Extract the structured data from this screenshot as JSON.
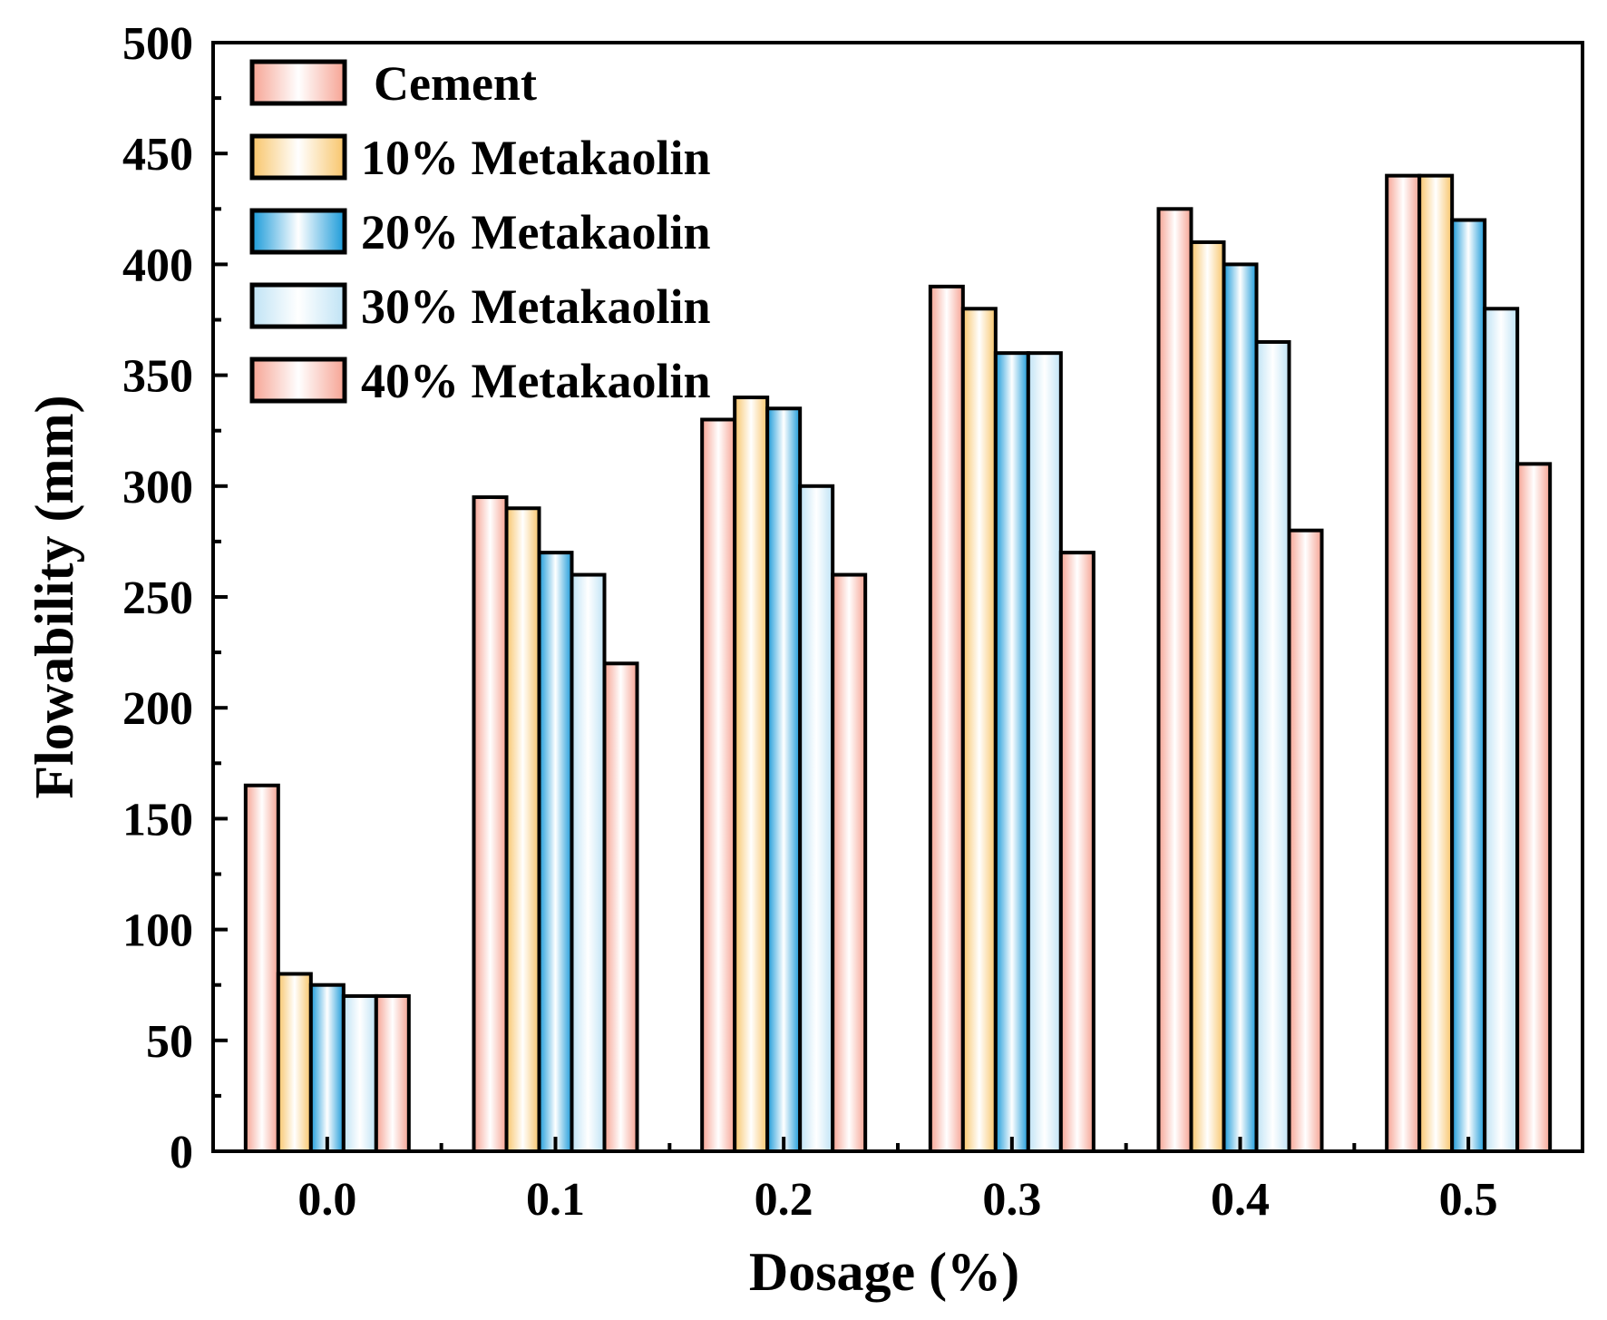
{
  "chart_data": {
    "type": "bar",
    "title": "",
    "xlabel": "Dosage (%)",
    "ylabel": "Flowability (mm)",
    "ylim": [
      0,
      500
    ],
    "yticks": [
      "0",
      "50",
      "100",
      "150",
      "200",
      "250",
      "300",
      "350",
      "400",
      "450",
      "500"
    ],
    "categories": [
      "0.0",
      "0.1",
      "0.2",
      "0.3",
      "0.4",
      "0.5"
    ],
    "legend_position": "top-left",
    "series": [
      {
        "name": "Cement",
        "color": "#f6a393",
        "values": [
          165,
          295,
          330,
          390,
          425,
          440
        ]
      },
      {
        "name": "10% Metakaolin",
        "color": "#f8c56a",
        "values": [
          80,
          290,
          340,
          380,
          410,
          440
        ]
      },
      {
        "name": "20% Metakaolin",
        "color": "#1a9ad9",
        "values": [
          75,
          270,
          335,
          360,
          400,
          420
        ]
      },
      {
        "name": "30% Metakaolin",
        "color": "#bfe3f5",
        "values": [
          70,
          260,
          300,
          360,
          365,
          380
        ]
      },
      {
        "name": "40% Metakaolin",
        "color": "#f6a393",
        "values": [
          70,
          220,
          260,
          270,
          280,
          310
        ]
      }
    ]
  }
}
